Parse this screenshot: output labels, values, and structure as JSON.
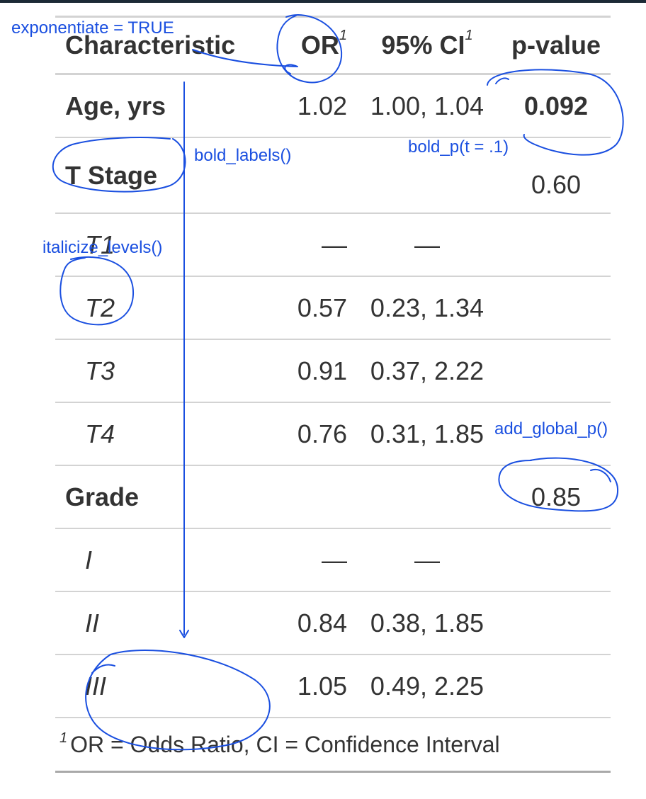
{
  "table": {
    "headers": {
      "characteristic": "Characteristic",
      "or": "OR",
      "ci": "95% CI",
      "p": "p-value",
      "footnote_marker": "1"
    },
    "rows": [
      {
        "label": "Age, yrs",
        "or": "1.02",
        "ci": "1.00, 1.04",
        "p": "0.092"
      },
      {
        "label": "T Stage",
        "or": "",
        "ci": "",
        "p": "0.60"
      },
      {
        "label": "T1",
        "or": "—",
        "ci": "—",
        "p": ""
      },
      {
        "label": "T2",
        "or": "0.57",
        "ci": "0.23, 1.34",
        "p": ""
      },
      {
        "label": "T3",
        "or": "0.91",
        "ci": "0.37, 2.22",
        "p": ""
      },
      {
        "label": "T4",
        "or": "0.76",
        "ci": "0.31, 1.85",
        "p": ""
      },
      {
        "label": "Grade",
        "or": "",
        "ci": "",
        "p": "0.85"
      },
      {
        "label": "I",
        "or": "—",
        "ci": "—",
        "p": ""
      },
      {
        "label": "II",
        "or": "0.84",
        "ci": "0.38, 1.85",
        "p": ""
      },
      {
        "label": "III",
        "or": "1.05",
        "ci": "0.49, 2.25",
        "p": ""
      }
    ],
    "footnote_marker": "1",
    "footnote": "OR = Odds Ratio, CI = Confidence Interval"
  },
  "annotations": {
    "exponentiate": "exponentiate = TRUE",
    "bold_labels": "bold_labels()",
    "bold_p": "bold_p(t = .1)",
    "italicize_levels": "italicize_levels()",
    "add_global_p": "add_global_p()"
  },
  "colors": {
    "annotation": "#1a4fe0",
    "text": "#333333",
    "rule": "#d3d3d3"
  }
}
